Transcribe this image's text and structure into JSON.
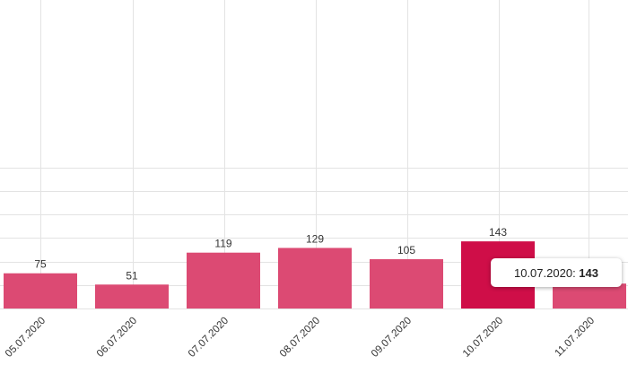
{
  "colors": {
    "bar": "#dc4a73",
    "bar_active": "#cf0e48",
    "grid": "#e3e3e3"
  },
  "chart_data": {
    "type": "bar",
    "categories": [
      "05.07.2020",
      "06.07.2020",
      "07.07.2020",
      "08.07.2020",
      "09.07.2020",
      "10.07.2020",
      "11.07.2020"
    ],
    "values": [
      75,
      51,
      119,
      129,
      105,
      143,
      53
    ],
    "ylim": [
      0,
      300
    ],
    "grid": true,
    "data_labels": true,
    "highlighted_index": 5
  },
  "tooltip": {
    "date": "10.07.2020",
    "separator": ": ",
    "value": "143"
  }
}
